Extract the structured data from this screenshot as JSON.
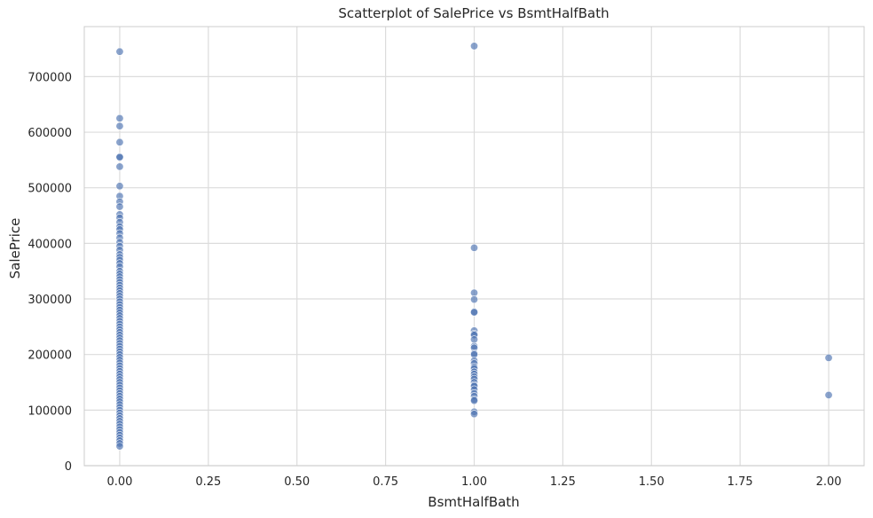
{
  "chart_data": {
    "type": "scatter",
    "title": "Scatterplot of SalePrice vs BsmtHalfBath",
    "xlabel": "BsmtHalfBath",
    "ylabel": "SalePrice",
    "xlim": [
      -0.1,
      2.1
    ],
    "ylim": [
      0,
      790000
    ],
    "x_ticks": [
      0,
      0.25,
      0.5,
      0.75,
      1.0,
      1.25,
      1.5,
      1.75,
      2.0
    ],
    "x_tick_labels": [
      "0.00",
      "0.25",
      "0.50",
      "0.75",
      "1.00",
      "1.25",
      "1.50",
      "1.75",
      "2.00"
    ],
    "y_ticks": [
      0,
      100000,
      200000,
      300000,
      400000,
      500000,
      600000,
      700000
    ],
    "y_tick_labels": [
      "0",
      "100000",
      "200000",
      "300000",
      "400000",
      "500000",
      "600000",
      "700000"
    ],
    "grid": true,
    "legend": "none",
    "marker_color": "#4c72b0",
    "marker_alpha": 0.65,
    "series": [
      {
        "x": [
          0,
          0,
          0,
          0,
          0,
          0,
          0,
          0,
          0,
          0,
          0,
          0,
          0,
          0,
          0,
          0,
          0,
          0,
          0,
          0,
          0,
          0,
          0,
          0,
          0,
          0,
          0,
          0,
          0,
          0,
          0,
          0,
          0,
          0,
          0,
          0,
          0,
          0,
          0,
          0,
          0,
          0,
          0,
          0,
          0,
          0,
          0,
          0,
          0,
          0,
          0,
          0,
          0,
          0,
          0,
          0,
          0,
          0,
          0,
          0,
          0,
          0,
          0,
          0,
          0,
          0,
          0,
          0,
          0,
          0,
          0,
          0,
          0,
          0,
          0,
          0,
          0,
          0,
          0,
          0,
          0,
          0,
          0,
          0,
          0,
          0,
          0,
          0,
          0,
          0,
          1,
          1,
          1,
          1,
          1,
          1,
          1,
          1,
          1,
          1,
          1,
          1,
          1,
          1,
          1,
          1,
          1,
          1,
          1,
          1,
          1,
          1,
          1,
          1,
          1,
          1,
          1,
          1,
          1,
          1,
          1,
          1,
          2,
          2
        ],
        "y": [
          745000,
          625000,
          611000,
          582000,
          556000,
          555000,
          538000,
          503000,
          485000,
          475000,
          466000,
          452000,
          446000,
          438000,
          430000,
          425000,
          418000,
          410000,
          402000,
          395000,
          388000,
          380000,
          375000,
          370000,
          364000,
          358000,
          350000,
          345000,
          340000,
          335000,
          330000,
          325000,
          320000,
          315000,
          310000,
          305000,
          300000,
          295000,
          290000,
          285000,
          280000,
          275000,
          270000,
          265000,
          260000,
          255000,
          250000,
          245000,
          240000,
          235000,
          230000,
          225000,
          220000,
          215000,
          210000,
          205000,
          200000,
          195000,
          190000,
          185000,
          180000,
          175000,
          170000,
          165000,
          160000,
          155000,
          150000,
          145000,
          140000,
          135000,
          130000,
          125000,
          120000,
          115000,
          110000,
          105000,
          100000,
          95000,
          90000,
          85000,
          80000,
          75000,
          70000,
          65000,
          60000,
          55000,
          50000,
          45000,
          40000,
          35000,
          755000,
          392000,
          311000,
          299000,
          277000,
          276000,
          243000,
          237000,
          235000,
          227000,
          215000,
          212000,
          202000,
          200000,
          189000,
          184000,
          178000,
          175000,
          169000,
          165000,
          160000,
          156000,
          150000,
          145000,
          143000,
          137000,
          130000,
          125000,
          119000,
          117000,
          97000,
          93000,
          194000,
          127000
        ]
      }
    ]
  }
}
